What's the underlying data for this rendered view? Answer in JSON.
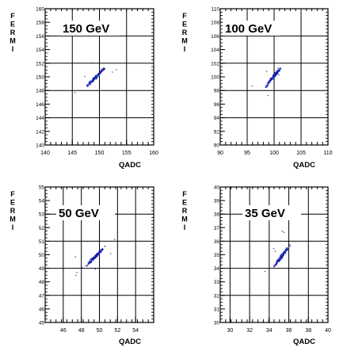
{
  "chart_data": [
    {
      "type": "scatter",
      "title": "150 GeV",
      "xlabel": "QADC",
      "ylabel": "FERMI",
      "xlim": [
        140,
        160
      ],
      "ylim": [
        140,
        160
      ],
      "xticks": [
        "140",
        "145",
        "150",
        "155",
        "160"
      ],
      "yticks": [
        "140",
        "142",
        "144",
        "146",
        "148",
        "150",
        "152",
        "154",
        "156",
        "158",
        "160"
      ],
      "grid": true,
      "cluster": {
        "x_from": 146.5,
        "x_to": 152.0,
        "y_from": 147.8,
        "y_to": 152.3
      }
    },
    {
      "type": "scatter",
      "title": "100 GeV",
      "xlabel": "QADC",
      "ylabel": "FERMI",
      "xlim": [
        90,
        110
      ],
      "ylim": [
        90,
        110
      ],
      "xticks": [
        "90",
        "95",
        "100",
        "105",
        "110"
      ],
      "yticks": [
        "90",
        "92",
        "94",
        "96",
        "98",
        "100",
        "102",
        "104",
        "106",
        "108",
        "110"
      ],
      "grid": true,
      "cluster": {
        "x_from": 97.2,
        "x_to": 102.3,
        "y_from": 97.6,
        "y_to": 102.5
      }
    },
    {
      "type": "scatter",
      "title": "50 GeV",
      "xlabel": "QADC",
      "ylabel": "FERMI",
      "xlim": [
        44,
        56
      ],
      "ylim": [
        45,
        55
      ],
      "xticks": [
        "46",
        "48",
        "50",
        "52",
        "54"
      ],
      "yticks": [
        "45",
        "46",
        "47",
        "48",
        "49",
        "50",
        "51",
        "52",
        "53",
        "54",
        "55"
      ],
      "grid": true,
      "cluster": {
        "x_from": 47.8,
        "x_to": 51.3,
        "y_from": 48.8,
        "y_to": 51.1
      }
    },
    {
      "type": "scatter",
      "title": "35 GeV",
      "xlabel": "QADC",
      "ylabel": "FERMI",
      "xlim": [
        29,
        40
      ],
      "ylim": [
        30,
        40
      ],
      "xticks": [
        "30",
        "32",
        "34",
        "36",
        "38",
        "40"
      ],
      "yticks": [
        "30",
        "31",
        "32",
        "33",
        "34",
        "35",
        "36",
        "37",
        "38",
        "39",
        "40"
      ],
      "grid": true,
      "cluster": {
        "x_from": 33.8,
        "x_to": 36.6,
        "y_from": 33.6,
        "y_to": 36.2
      }
    }
  ],
  "style": {
    "frame_color": "#000000",
    "point_color": "#1a1aa6",
    "point_highlight_color": "#3a7fe0"
  }
}
